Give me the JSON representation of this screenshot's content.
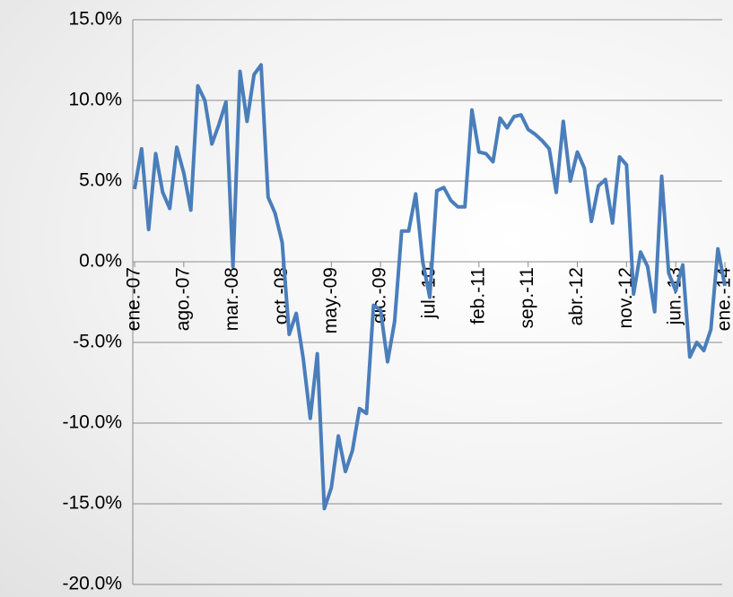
{
  "chart_data": {
    "type": "line",
    "categories": [
      "ene.-07",
      null,
      null,
      null,
      null,
      null,
      null,
      "ago.-07",
      null,
      null,
      null,
      null,
      null,
      null,
      "mar.-08",
      null,
      null,
      null,
      null,
      null,
      null,
      "oct.-08",
      null,
      null,
      null,
      null,
      null,
      null,
      "may.-09",
      null,
      null,
      null,
      null,
      null,
      null,
      "dic.-09",
      null,
      null,
      null,
      null,
      null,
      null,
      "jul.-10",
      null,
      null,
      null,
      null,
      null,
      null,
      "feb.-11",
      null,
      null,
      null,
      null,
      null,
      null,
      "sep.-11",
      null,
      null,
      null,
      null,
      null,
      null,
      "abr.-12",
      null,
      null,
      null,
      null,
      null,
      null,
      "nov.-12",
      null,
      null,
      null,
      null,
      null,
      null,
      "jun.-13",
      null,
      null,
      null,
      null,
      null,
      null,
      "ene.-14"
    ],
    "series": [
      {
        "color": "#4a7ebb",
        "values": [
          4.5,
          7.0,
          2.0,
          6.7,
          4.3,
          3.3,
          7.1,
          5.5,
          3.2,
          10.9,
          10.0,
          7.3,
          8.5,
          9.9,
          -0.3,
          11.8,
          8.7,
          11.6,
          12.2,
          4.0,
          3.0,
          1.2,
          -4.5,
          -3.2,
          -6.0,
          -9.7,
          -5.7,
          -15.3,
          -14.0,
          -10.8,
          -13.0,
          -11.7,
          -9.1,
          -9.4,
          -2.7,
          -3.0,
          -6.2,
          -3.7,
          1.9,
          1.9,
          4.2,
          0.0,
          -2.2,
          4.4,
          4.6,
          3.8,
          3.4,
          3.4,
          9.4,
          6.8,
          6.7,
          6.2,
          8.9,
          8.3,
          9.0,
          9.1,
          8.2,
          7.9,
          7.5,
          7.0,
          4.3,
          8.7,
          5.0,
          6.8,
          5.8,
          2.5,
          4.7,
          5.1,
          2.4,
          6.5,
          6.0,
          -2.0,
          0.6,
          -0.3,
          -3.1,
          5.3,
          -0.7,
          -1.8,
          -0.2,
          -5.9,
          -5.0,
          -5.5,
          -4.2,
          0.8,
          -1.5
        ]
      }
    ],
    "ylim": [
      -20,
      15
    ],
    "yticks": [
      {
        "value": -20,
        "label": "-20.0%"
      },
      {
        "value": -15,
        "label": "-15.0%"
      },
      {
        "value": -10,
        "label": "-10.0%"
      },
      {
        "value": -5,
        "label": "-5.0%"
      },
      {
        "value": 0,
        "label": "0.0%"
      },
      {
        "value": 5,
        "label": "5.0%"
      },
      {
        "value": 10,
        "label": "10.0%"
      },
      {
        "value": 15,
        "label": "15.0%"
      }
    ],
    "grid": true
  }
}
